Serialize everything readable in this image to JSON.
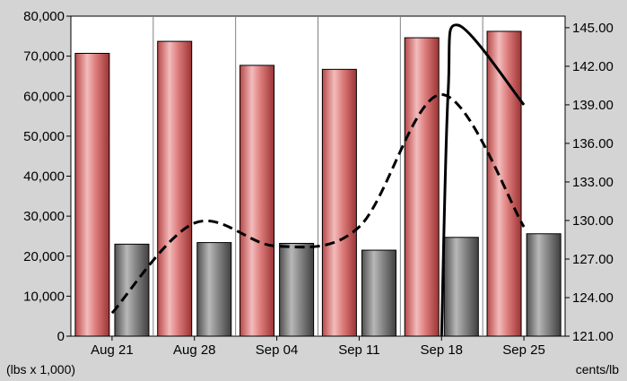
{
  "chart_data": {
    "type": "bar",
    "categories": [
      "Aug 21",
      "Aug 28",
      "Sep 04",
      "Sep 11",
      "Sep 18",
      "Sep 25"
    ],
    "series": [
      {
        "kind": "bar",
        "axis": "left",
        "values": [
          70700,
          73700,
          67700,
          66700,
          74600,
          76200
        ],
        "color": "#d96b6b"
      },
      {
        "kind": "bar",
        "axis": "left",
        "values": [
          23000,
          23400,
          23200,
          21500,
          24700,
          25600
        ],
        "color": "#7a7a7a"
      },
      {
        "kind": "line",
        "axis": "right",
        "style": "dashed",
        "values": [
          122.8,
          129.8,
          128.0,
          129.5,
          139.8,
          129.5
        ],
        "color": "#000000"
      },
      {
        "kind": "line",
        "axis": "right",
        "style": "solid",
        "x": [
          4,
          4.08,
          4.2,
          5
        ],
        "values": [
          121.0,
          140.0,
          145.2,
          139.0
        ],
        "color": "#000000"
      }
    ],
    "y_left": {
      "ylim": [
        0,
        80000
      ],
      "ticks": [
        "0",
        "10,000",
        "20,000",
        "30,000",
        "40,000",
        "50,000",
        "60,000",
        "70,000",
        "80,000"
      ],
      "label": "(lbs x 1,000)"
    },
    "y_right": {
      "ylim": [
        121,
        145.9
      ],
      "tick_values": [
        121,
        124,
        127,
        130,
        133,
        136,
        139,
        142,
        145
      ],
      "ticks": [
        "121.00",
        "124.00",
        "127.00",
        "130.00",
        "133.00",
        "136.00",
        "139.00",
        "142.00",
        "145.00"
      ],
      "label": "cents/lb"
    },
    "grid": "vertical",
    "plot_background": "#ffffff"
  }
}
